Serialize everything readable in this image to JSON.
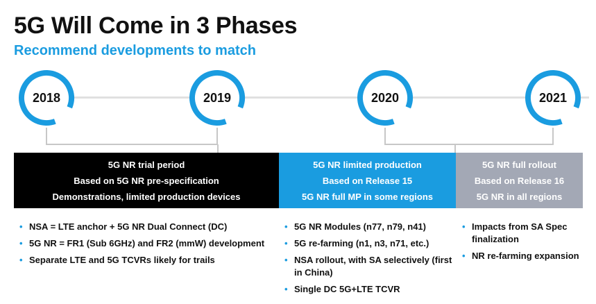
{
  "header": {
    "title": "5G Will Come in 3 Phases",
    "subtitle": "Recommend developments to match"
  },
  "colors": {
    "accent_blue": "#1a9ce0",
    "phase1_bg": "#000000",
    "phase2_bg": "#1a9ce0",
    "phase3_bg": "#a3a8b5"
  },
  "milestones": [
    {
      "year": "2018"
    },
    {
      "year": "2019"
    },
    {
      "year": "2020"
    },
    {
      "year": "2021"
    }
  ],
  "phases": [
    {
      "lines": [
        "5G NR trial period",
        "Based on 5G NR pre-specification",
        "Demonstrations, limited production devices"
      ],
      "bullets": [
        "NSA = LTE anchor + 5G NR Dual Connect (DC)",
        "5G NR = FR1 (Sub 6GHz) and FR2 (mmW) development",
        "Separate LTE and 5G TCVRs likely for trails"
      ]
    },
    {
      "lines": [
        "5G NR limited production",
        "Based on Release 15",
        "5G NR full MP in some regions"
      ],
      "bullets": [
        "5G NR Modules (n77, n79, n41)",
        "5G re-farming (n1, n3, n71, etc.)",
        "NSA rollout, with SA selectively (first in China)",
        "Single DC 5G+LTE TCVR"
      ]
    },
    {
      "lines": [
        "5G NR full rollout",
        "Based on Release 16",
        "5G NR in all regions"
      ],
      "bullets": [
        "Impacts from SA Spec finalization",
        "NR re-farming expansion"
      ]
    }
  ]
}
